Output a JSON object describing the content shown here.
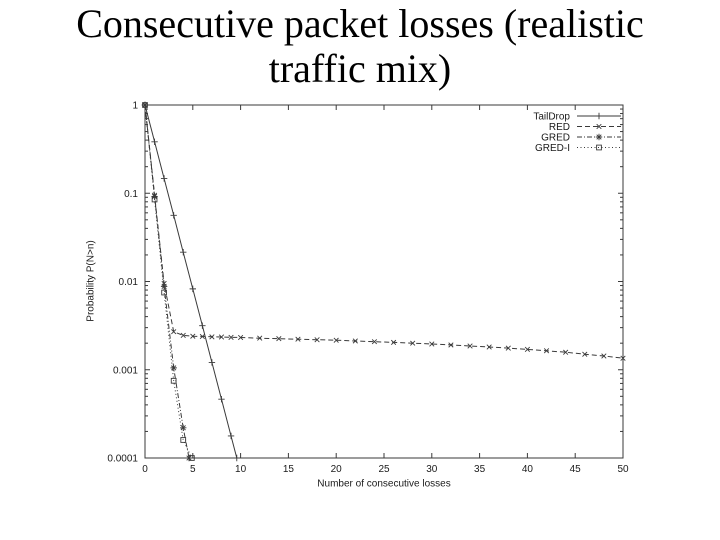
{
  "slide": {
    "title_line1": "Consecutive packet losses (realistic",
    "title_line2": "traffic mix)"
  },
  "chart_data": {
    "type": "line",
    "title": "",
    "xlabel": "Number of consecutive losses",
    "ylabel": "Probability P(N>n)",
    "xlim": [
      0,
      50
    ],
    "ylim": [
      0.0001,
      1
    ],
    "y_scale": "log",
    "grid": false,
    "legend_position": "top-right",
    "xticks": [
      0,
      5,
      10,
      15,
      20,
      25,
      30,
      35,
      40,
      45,
      50
    ],
    "yticks": [
      1,
      0.1,
      0.01,
      0.001,
      0.0001
    ],
    "ytick_labels": [
      "1",
      "0.1",
      "0.01",
      "0.001",
      "0.0001"
    ],
    "line_color": "#3a3a3a",
    "series": [
      {
        "name": "TailDrop",
        "line": "solid",
        "marker": "plus",
        "points": [
          [
            0,
            1
          ],
          [
            1,
            0.383
          ],
          [
            2,
            0.147
          ],
          [
            3,
            0.0562
          ],
          [
            4,
            0.0215
          ],
          [
            5,
            0.00825
          ],
          [
            6,
            0.00316
          ],
          [
            7,
            0.00121
          ],
          [
            8,
            0.000464
          ],
          [
            9,
            0.000178
          ],
          [
            9.6,
            0.0001
          ]
        ]
      },
      {
        "name": "RED",
        "line": "dashed",
        "marker": "cross",
        "points": [
          [
            0,
            1
          ],
          [
            1,
            0.095
          ],
          [
            2,
            0.0095
          ],
          [
            3,
            0.0027
          ],
          [
            4,
            0.00245
          ],
          [
            5,
            0.0024
          ],
          [
            6,
            0.00238
          ],
          [
            7,
            0.00236
          ],
          [
            8,
            0.00235
          ],
          [
            9,
            0.00233
          ],
          [
            10,
            0.00232
          ],
          [
            12,
            0.00228
          ],
          [
            14,
            0.00225
          ],
          [
            16,
            0.00222
          ],
          [
            18,
            0.00219
          ],
          [
            20,
            0.00216
          ],
          [
            22,
            0.00212
          ],
          [
            24,
            0.00208
          ],
          [
            26,
            0.00204
          ],
          [
            28,
            0.002
          ],
          [
            30,
            0.00196
          ],
          [
            32,
            0.00191
          ],
          [
            34,
            0.00186
          ],
          [
            36,
            0.00181
          ],
          [
            38,
            0.00176
          ],
          [
            40,
            0.0017
          ],
          [
            42,
            0.00164
          ],
          [
            44,
            0.00158
          ],
          [
            46,
            0.0015
          ],
          [
            48,
            0.00143
          ],
          [
            50,
            0.00135
          ]
        ]
      },
      {
        "name": "GRED",
        "line": "dashdot",
        "marker": "asterisk",
        "points": [
          [
            0,
            1
          ],
          [
            1,
            0.092
          ],
          [
            2,
            0.0088
          ],
          [
            3,
            0.00105
          ],
          [
            4,
            0.00022
          ],
          [
            4.6,
            0.0001
          ]
        ]
      },
      {
        "name": "GRED-I",
        "line": "dotted",
        "marker": "square",
        "points": [
          [
            0,
            1
          ],
          [
            1,
            0.085
          ],
          [
            2,
            0.0075
          ],
          [
            3,
            0.00075
          ],
          [
            4,
            0.00016
          ],
          [
            4.9,
            0.0001
          ]
        ]
      }
    ]
  }
}
